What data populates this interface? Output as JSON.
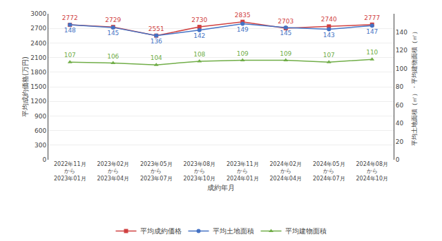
{
  "chart_data": {
    "type": "line",
    "xlabel": "成約年月",
    "ylabel": "平均成約価格(万円)",
    "y2label": "平均土地面積（㎡）・平均建物面積（㎡）",
    "categories": [
      "2022年11月\nから\n2023年01月",
      "2023年02月\nから\n2023年04月",
      "2023年05月\nから\n2023年07月",
      "2023年08月\nから\n2023年10月",
      "2023年11月\nから\n2024年01月",
      "2024年02月\nから\n2024年04月",
      "2024年05月\nから\n2024年07月",
      "2024年08月\nから\n2024年10月"
    ],
    "series": [
      {
        "name": "平均成約価格",
        "color": "#d04040",
        "marker": "square",
        "values": [
          2772,
          2729,
          2551,
          2730,
          2835,
          2703,
          2740,
          2777
        ]
      },
      {
        "name": "平均土地面積",
        "color": "#4472c4",
        "marker": "circle",
        "axis": "y2",
        "values": [
          148,
          145,
          136,
          142,
          149,
          145,
          143,
          147
        ]
      },
      {
        "name": "平均建物面積",
        "color": "#70ad47",
        "marker": "triangle-up",
        "axis": "y2",
        "values": [
          107,
          106,
          104,
          108,
          109,
          109,
          107,
          110
        ]
      }
    ],
    "ylim": [
      0,
      3000
    ],
    "yticks": [
      0,
      300,
      600,
      900,
      1200,
      1500,
      1800,
      2100,
      2400,
      2700,
      3000
    ],
    "y2lim": [
      0,
      160
    ],
    "y2ticks": [
      0,
      20,
      40,
      60,
      80,
      100,
      120,
      140
    ],
    "grid": true,
    "legend": "lower center",
    "data_labels": true
  }
}
